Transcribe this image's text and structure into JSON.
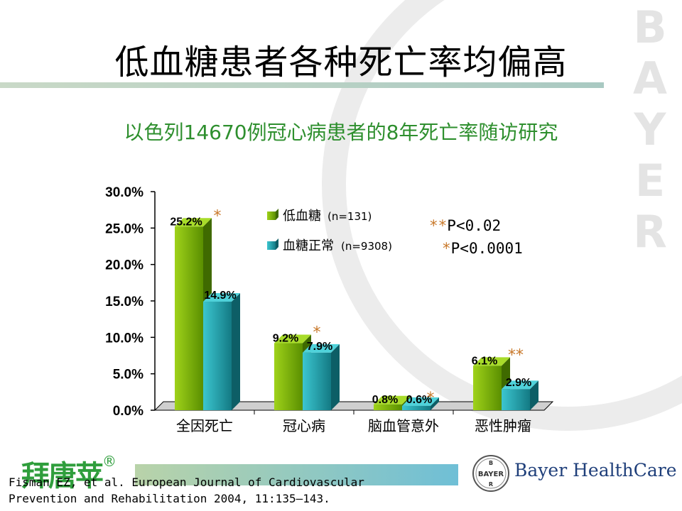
{
  "watermark": {
    "text": "BAYER"
  },
  "title": "低血糖患者各种死亡率均偏高",
  "subtitle": "以色列14670例冠心病患者的8年死亡率随访研究",
  "chart_data": {
    "type": "bar",
    "categories": [
      "全因死亡",
      "冠心病",
      "脑血管意外",
      "恶性肿瘤"
    ],
    "series": [
      {
        "name": "低血糖",
        "n_label": "(n=131)",
        "values": [
          25.2,
          9.2,
          0.8,
          6.1
        ],
        "labels": [
          "25.2%",
          "9.2%",
          "0.8%",
          "6.1%"
        ],
        "color": "#7fb800"
      },
      {
        "name": "血糖正常",
        "n_label": "(n=9308)",
        "values": [
          14.9,
          7.9,
          0.6,
          2.9
        ],
        "labels": [
          "14.9%",
          "7.9%",
          "0.6%",
          "2.9%"
        ],
        "color": "#1fa7b3"
      }
    ],
    "significance": [
      "*",
      "*",
      "*",
      "**"
    ],
    "yticks": [
      "0.0%",
      "5.0%",
      "10.0%",
      "15.0%",
      "20.0%",
      "25.0%",
      "30.0%"
    ],
    "ylim": [
      0,
      30
    ],
    "legend_position": "top-center"
  },
  "pvalues": [
    {
      "stars": "**",
      "text": "P<0.02"
    },
    {
      "stars": "*",
      "text": "P<0.0001"
    }
  ],
  "footer": {
    "brand_cn": "拜唐苹",
    "brand_reg": "®",
    "citation_line1": "Fisman EZ, et al. European Journal of Cardiovascular",
    "citation_line2": "Prevention and Rehabilitation 2004, 11:135–143.",
    "bayer_logo_text": "BAYER",
    "company_name_1": "Bayer ",
    "company_name_2": "HealthCare"
  }
}
